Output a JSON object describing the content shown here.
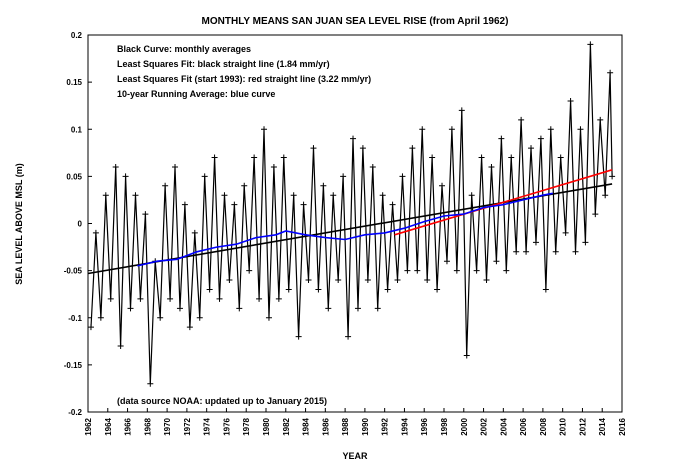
{
  "chart_data": {
    "type": "line",
    "title": "MONTHLY MEANS SAN JUAN SEA LEVEL RISE (from April 1962)",
    "x_label": "YEAR",
    "y_label": "SEA LEVEL ABOVE MSL (m)",
    "annotations": [
      "Black Curve: monthly averages",
      "Least Squares Fit: black straight line (1.84 mm/yr)",
      "Least Squares Fit (start 1993): red straight line (3.22 mm/yr)",
      "10-year Running Average: blue curve",
      "(data source NOAA: updated up to January 2015)"
    ],
    "xlim": [
      1962,
      2016
    ],
    "xticks": [
      1962,
      1964,
      1966,
      1968,
      1970,
      1972,
      1974,
      1976,
      1978,
      1980,
      1982,
      1984,
      1986,
      1988,
      1990,
      1992,
      1994,
      1996,
      1998,
      2000,
      2002,
      2004,
      2006,
      2008,
      2010,
      2012,
      2014,
      2016
    ],
    "ylim": [
      -0.2,
      0.2
    ],
    "yticks": [
      -0.2,
      -0.15,
      -0.1,
      -0.05,
      0,
      0.05,
      0.1,
      0.15,
      0.2
    ],
    "series": [
      {
        "color": "#000000",
        "marker": "plus",
        "x": [
          1962.3,
          1962.8,
          1963.3,
          1963.8,
          1964.3,
          1964.8,
          1965.3,
          1965.8,
          1966.3,
          1966.8,
          1967.3,
          1967.8,
          1968.3,
          1968.8,
          1969.3,
          1969.8,
          1970.3,
          1970.8,
          1971.3,
          1971.8,
          1972.3,
          1972.8,
          1973.3,
          1973.8,
          1974.3,
          1974.8,
          1975.3,
          1975.8,
          1976.3,
          1976.8,
          1977.3,
          1977.8,
          1978.3,
          1978.8,
          1979.3,
          1979.8,
          1980.3,
          1980.8,
          1981.3,
          1981.8,
          1982.3,
          1982.8,
          1983.3,
          1983.8,
          1984.3,
          1984.8,
          1985.3,
          1985.8,
          1986.3,
          1986.8,
          1987.3,
          1987.8,
          1988.3,
          1988.8,
          1989.3,
          1989.8,
          1990.3,
          1990.8,
          1991.3,
          1991.8,
          1992.3,
          1992.8,
          1993.3,
          1993.8,
          1994.3,
          1994.8,
          1995.3,
          1995.8,
          1996.3,
          1996.8,
          1997.3,
          1997.8,
          1998.3,
          1998.8,
          1999.3,
          1999.8,
          2000.3,
          2000.8,
          2001.3,
          2001.8,
          2002.3,
          2002.8,
          2003.3,
          2003.8,
          2004.3,
          2004.8,
          2005.3,
          2005.8,
          2006.3,
          2006.8,
          2007.3,
          2007.8,
          2008.3,
          2008.8,
          2009.3,
          2009.8,
          2010.3,
          2010.8,
          2011.3,
          2011.8,
          2012.3,
          2012.8,
          2013.3,
          2013.8,
          2014.3,
          2014.8,
          2015.0
        ],
        "values": [
          -0.11,
          -0.01,
          -0.1,
          0.03,
          -0.08,
          0.06,
          -0.13,
          0.05,
          -0.09,
          0.03,
          -0.08,
          0.01,
          -0.17,
          -0.04,
          -0.1,
          0.04,
          -0.08,
          0.06,
          -0.09,
          0.02,
          -0.11,
          -0.01,
          -0.1,
          0.05,
          -0.07,
          0.07,
          -0.08,
          0.03,
          -0.06,
          0.02,
          -0.09,
          0.04,
          -0.05,
          0.07,
          -0.08,
          0.1,
          -0.1,
          0.06,
          -0.08,
          0.07,
          -0.07,
          0.03,
          -0.12,
          0.02,
          -0.06,
          0.08,
          -0.07,
          0.04,
          -0.09,
          0.03,
          -0.06,
          0.05,
          -0.12,
          0.09,
          -0.09,
          0.08,
          -0.06,
          0.06,
          -0.09,
          0.03,
          -0.07,
          0.02,
          -0.06,
          0.05,
          -0.05,
          0.08,
          -0.05,
          0.1,
          -0.06,
          0.07,
          -0.07,
          0.04,
          -0.04,
          0.1,
          -0.05,
          0.12,
          -0.14,
          0.03,
          -0.05,
          0.07,
          -0.06,
          0.06,
          -0.04,
          0.09,
          -0.05,
          0.07,
          -0.03,
          0.11,
          -0.03,
          0.08,
          -0.02,
          0.09,
          -0.07,
          0.1,
          -0.03,
          0.07,
          -0.01,
          0.13,
          -0.03,
          0.1,
          -0.02,
          0.19,
          0.01,
          0.11,
          0.03,
          0.16,
          0.05
        ]
      },
      {
        "color": "#000000",
        "x": [
          1962,
          2015
        ],
        "values": [
          -0.053,
          0.042
        ]
      },
      {
        "color": "#ff0000",
        "x": [
          1993,
          2015
        ],
        "values": [
          -0.012,
          0.057
        ]
      },
      {
        "color": "#0000ff",
        "x": [
          1967,
          1969,
          1971,
          1973,
          1975,
          1977,
          1979,
          1981,
          1982,
          1984,
          1986,
          1988,
          1990,
          1992,
          1994,
          1996,
          1998,
          2000,
          2002,
          2004,
          2006,
          2008,
          2009
        ],
        "values": [
          -0.045,
          -0.04,
          -0.038,
          -0.03,
          -0.025,
          -0.022,
          -0.015,
          -0.012,
          -0.008,
          -0.012,
          -0.015,
          -0.017,
          -0.012,
          -0.01,
          -0.005,
          0.002,
          0.008,
          0.01,
          0.017,
          0.02,
          0.025,
          0.03,
          0.032
        ]
      }
    ]
  }
}
